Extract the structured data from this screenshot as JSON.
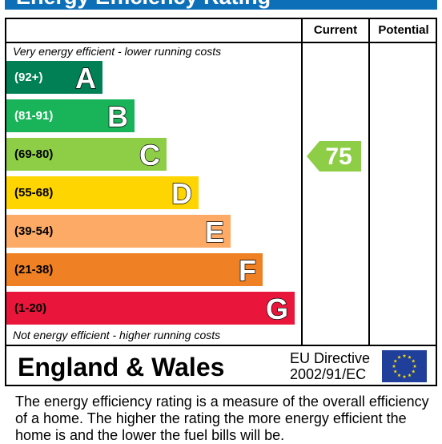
{
  "title": "Energy Efficiency Rating",
  "columns": {
    "current": "Current",
    "potential": "Potential"
  },
  "top_note": "Very energy efficient - lower running costs",
  "bottom_note": "Not energy efficient - higher running costs",
  "footer": {
    "region": "England & Wales",
    "directive_line1": "EU Directive",
    "directive_line2": "2002/91/EC"
  },
  "description": "The energy efficiency rating is a measure of the overall efficiency of a home.  The higher the rating the more energy efficient the home is and the lower the fuel bills will be.",
  "colors": {
    "title_bar": "#0d6fb8",
    "A": "#008054",
    "B": "#19b459",
    "C": "#8dce46",
    "D": "#ffd500",
    "E": "#fcaa65",
    "F": "#ef8023",
    "G": "#e9153b"
  },
  "chart_data": {
    "type": "bar",
    "categories": [
      "A",
      "B",
      "C",
      "D",
      "E",
      "F",
      "G"
    ],
    "ranges": [
      "(92+)",
      "(81-91)",
      "(69-80)",
      "(55-68)",
      "(39-54)",
      "(21-38)",
      "(1-20)"
    ],
    "current": 75,
    "current_band": "C",
    "potential": null
  }
}
